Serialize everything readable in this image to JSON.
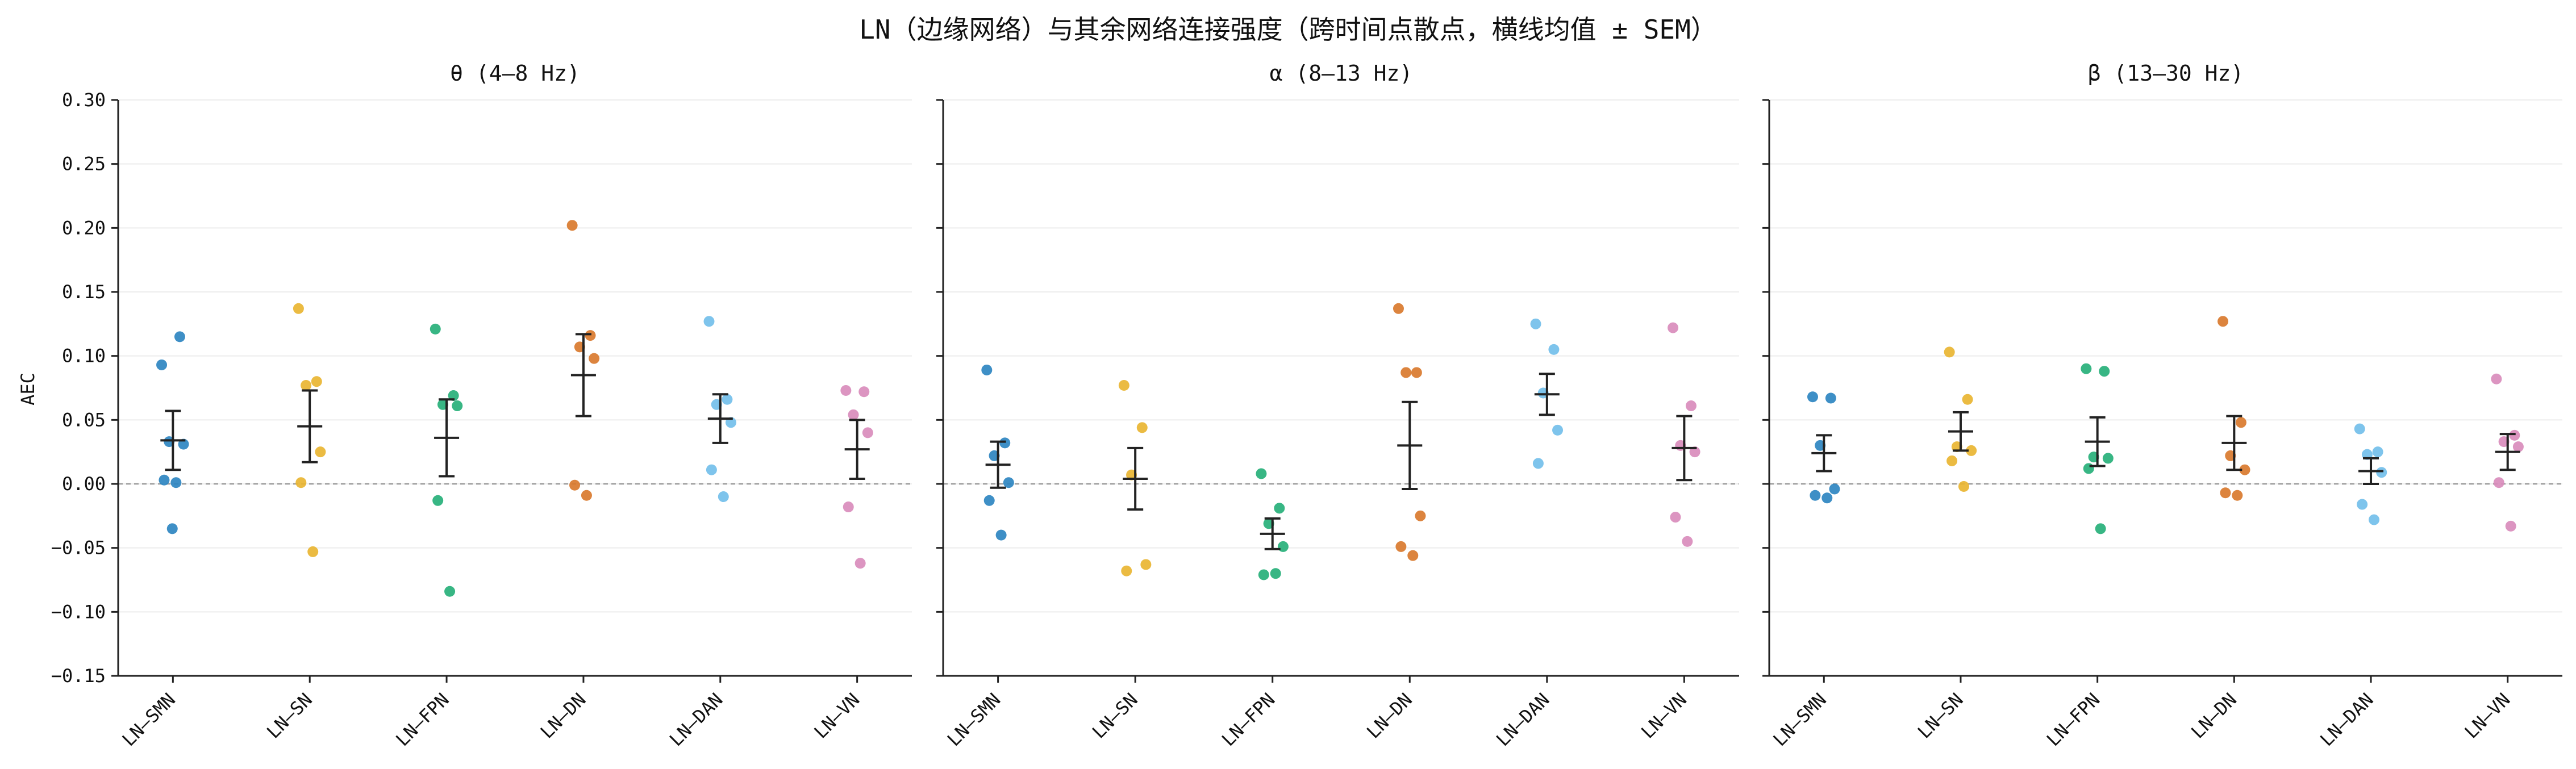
{
  "chart_data": {
    "type": "scatter",
    "title": "LN（边缘网络）与其余网络连接强度（跨时间点散点，横线均值 ± SEM）",
    "ylabel": "AEC",
    "ylim": [
      -0.15,
      0.3
    ],
    "yticks": [
      -0.15,
      -0.1,
      -0.05,
      0.0,
      0.05,
      0.1,
      0.15,
      0.2,
      0.25,
      0.3
    ],
    "ytick_labels": [
      "−0.15",
      "−0.10",
      "−0.05",
      "0.00",
      "0.05",
      "0.10",
      "0.15",
      "0.20",
      "0.25",
      "0.30"
    ],
    "categories": [
      "LN–SMN",
      "LN–SN",
      "LN–FPN",
      "LN–DN",
      "LN–DAN",
      "LN–VN"
    ],
    "colors": [
      "#2e86c1",
      "#e9b532",
      "#27b07a",
      "#d97a2e",
      "#73bfea",
      "#d98cbc"
    ],
    "reference_line": 0.0,
    "grid": true,
    "panels": [
      {
        "title": "θ (4–8 Hz)",
        "groups": [
          {
            "points": [
              0.093,
              0.115,
              0.033,
              0.031,
              0.003,
              0.001,
              -0.035
            ],
            "mean": 0.034,
            "sem": 0.023
          },
          {
            "points": [
              0.137,
              0.08,
              0.077,
              0.025,
              0.001,
              -0.053
            ],
            "mean": 0.045,
            "sem": 0.028
          },
          {
            "points": [
              0.121,
              0.069,
              0.062,
              0.061,
              -0.013,
              -0.084
            ],
            "mean": 0.036,
            "sem": 0.03
          },
          {
            "points": [
              0.202,
              0.116,
              0.107,
              0.098,
              -0.001,
              -0.009
            ],
            "mean": 0.085,
            "sem": 0.032
          },
          {
            "points": [
              0.127,
              0.066,
              0.062,
              0.048,
              0.011,
              -0.01
            ],
            "mean": 0.051,
            "sem": 0.019
          },
          {
            "points": [
              0.073,
              0.072,
              0.054,
              0.04,
              -0.018,
              -0.062
            ],
            "mean": 0.027,
            "sem": 0.023
          }
        ]
      },
      {
        "title": "α (8–13 Hz)",
        "groups": [
          {
            "points": [
              0.089,
              0.032,
              0.022,
              0.001,
              -0.013,
              -0.04
            ],
            "mean": 0.015,
            "sem": 0.018
          },
          {
            "points": [
              0.077,
              0.044,
              0.007,
              -0.063,
              -0.068
            ],
            "mean": 0.004,
            "sem": 0.024
          },
          {
            "points": [
              0.008,
              -0.019,
              -0.031,
              -0.049,
              -0.071,
              -0.07
            ],
            "mean": -0.039,
            "sem": 0.012
          },
          {
            "points": [
              0.137,
              0.087,
              0.087,
              -0.025,
              -0.049,
              -0.056
            ],
            "mean": 0.03,
            "sem": 0.034
          },
          {
            "points": [
              0.125,
              0.105,
              0.071,
              0.042,
              0.016
            ],
            "mean": 0.07,
            "sem": 0.016
          },
          {
            "points": [
              0.122,
              0.061,
              0.03,
              0.025,
              -0.026,
              -0.045
            ],
            "mean": 0.028,
            "sem": 0.025
          }
        ]
      },
      {
        "title": "β (13–30 Hz)",
        "groups": [
          {
            "points": [
              0.068,
              0.067,
              0.03,
              -0.004,
              -0.009,
              -0.011
            ],
            "mean": 0.024,
            "sem": 0.014
          },
          {
            "points": [
              0.103,
              0.066,
              0.029,
              0.026,
              0.018,
              -0.002
            ],
            "mean": 0.041,
            "sem": 0.015
          },
          {
            "points": [
              0.09,
              0.088,
              0.021,
              0.02,
              0.012,
              -0.035
            ],
            "mean": 0.033,
            "sem": 0.019
          },
          {
            "points": [
              0.127,
              0.048,
              0.022,
              0.011,
              -0.007,
              -0.009
            ],
            "mean": 0.032,
            "sem": 0.021
          },
          {
            "points": [
              0.043,
              0.025,
              0.023,
              0.009,
              -0.016,
              -0.028
            ],
            "mean": 0.01,
            "sem": 0.01
          },
          {
            "points": [
              0.082,
              0.038,
              0.033,
              0.029,
              0.001,
              -0.033
            ],
            "mean": 0.025,
            "sem": 0.014
          }
        ]
      }
    ]
  }
}
